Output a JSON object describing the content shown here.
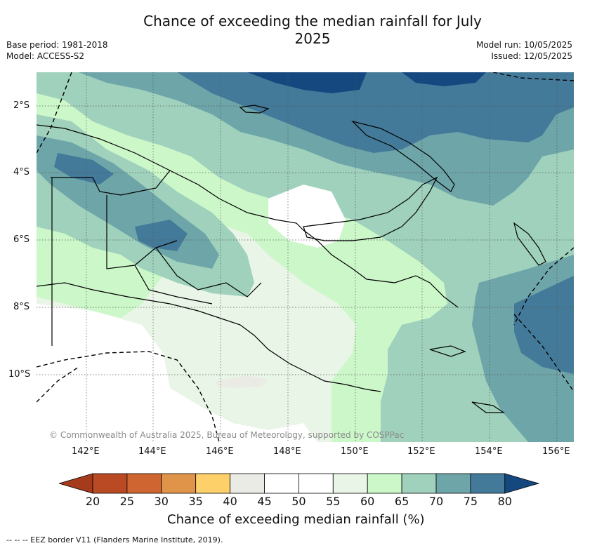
{
  "title": "Chance of exceeding the median rainfall for July 2025",
  "meta": {
    "base_period": "Base period: 1981-2018",
    "model": "Model: ACCESS-S2",
    "model_run": "Model run: 10/05/2025",
    "issued": "Issued: 12/05/2025"
  },
  "credit": "© Commonwealth of Australia 2025, Bureau of Meteorology, supported by COSPPac",
  "axes": {
    "lat_labels": [
      "2°S",
      "4°S",
      "6°S",
      "8°S",
      "10°S"
    ],
    "lon_labels": [
      "142°E",
      "144°E",
      "146°E",
      "148°E",
      "150°E",
      "152°E",
      "154°E",
      "156°E"
    ]
  },
  "colorbar": {
    "title": "Chance of exceeding median rainfall (%)",
    "ticks": [
      "20",
      "25",
      "30",
      "35",
      "40",
      "45",
      "50",
      "55",
      "60",
      "65",
      "70",
      "75",
      "80"
    ],
    "colors": [
      "#a63b1c",
      "#b94a24",
      "#cf6530",
      "#e0944a",
      "#fdd06a",
      "#ebebe6",
      "#ffffff",
      "#ffffff",
      "#e9f5e7",
      "#ccf7c9",
      "#9fd1bc",
      "#6ea5a8",
      "#447a99",
      "#15487f"
    ]
  },
  "footnote": "--  --  -- EEZ border V11 (Flanders Marine Institute, 2019).",
  "colors": {
    "high_80": "#15487f",
    "band_75": "#447a99",
    "band_70": "#6ea5a8",
    "band_65": "#9fd1bc",
    "band_60": "#ccf7c9",
    "band_55": "#e9f5e7",
    "band_40": "#ebebe6"
  }
}
